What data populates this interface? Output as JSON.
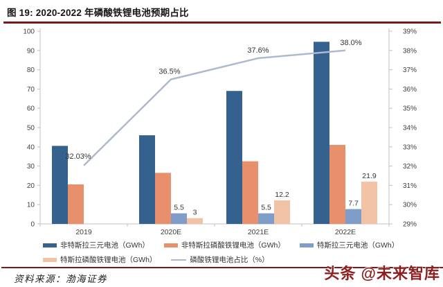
{
  "header": {
    "title": "图 19:  2020-2022 年磷酸铁锂电池预期占比"
  },
  "footer": {
    "source": "资料来源：渤海证券",
    "watermark": "头条 @未来智库"
  },
  "colors": {
    "rule_red": "#7d1719",
    "watermark_red": "#8e1f1f",
    "axis_gray": "#c0c0c0",
    "tick_text": "#404040",
    "label_text": "#333333"
  },
  "chart_data": {
    "type": "bar+line",
    "title": "2020-2022 年磷酸铁锂电池预期占比",
    "categories": [
      "2019",
      "2020E",
      "2021E",
      "2022E"
    ],
    "series": [
      {
        "name": "非特斯拉三元电池（GWh）",
        "kind": "bar",
        "color": "#35618f",
        "values": [
          40.5,
          46,
          69,
          94.5
        ],
        "labels": [
          "",
          "",
          "",
          ""
        ]
      },
      {
        "name": "非特斯拉磷酸铁锂电池（GWh）",
        "kind": "bar",
        "color": "#e8906b",
        "values": [
          20.5,
          26.5,
          32.5,
          41
        ],
        "labels": [
          "",
          "",
          "",
          ""
        ]
      },
      {
        "name": "特斯拉三元电池（GWh）",
        "kind": "bar",
        "color": "#7f9dc9",
        "values": [
          0,
          5.5,
          5.5,
          7.7
        ],
        "labels": [
          "",
          "5.5",
          "5.5",
          "7.7"
        ]
      },
      {
        "name": "特斯拉磷酸铁锂电池（GWh）",
        "kind": "bar",
        "color": "#f1c2a4",
        "values": [
          0,
          3,
          12.2,
          21.9
        ],
        "labels": [
          "",
          "3",
          "12.2",
          "21.9"
        ]
      },
      {
        "name": "磷酸铁锂电池占比（%）",
        "kind": "line",
        "axis": "right",
        "color": "#aeb8ce",
        "values": [
          32.03,
          36.5,
          37.6,
          38.0
        ],
        "labels": [
          "32.03%",
          "36.5%",
          "37.6%",
          "38.0%"
        ]
      }
    ],
    "left_axis": {
      "min": 0,
      "max": 100,
      "step": 10,
      "tick_labels": [
        "0",
        "10",
        "20",
        "30",
        "40",
        "50",
        "60",
        "70",
        "80",
        "90",
        "100"
      ]
    },
    "right_axis": {
      "min": 29,
      "max": 39,
      "step": 1,
      "tick_labels": [
        "29%",
        "30%",
        "31%",
        "32%",
        "33%",
        "34%",
        "35%",
        "36%",
        "37%",
        "38%",
        "39%"
      ]
    },
    "grid": false,
    "legend_position": "bottom"
  }
}
